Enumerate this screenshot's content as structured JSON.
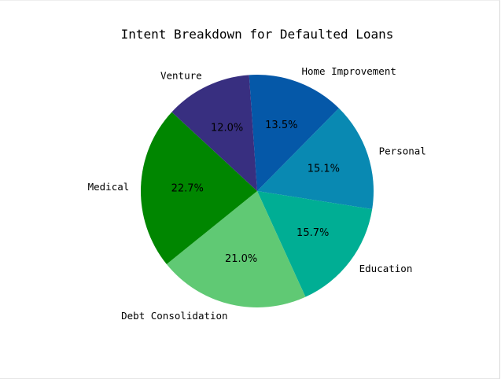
{
  "chart_data": {
    "type": "pie",
    "title": "Intent Breakdown for Defaulted Loans",
    "categories": [
      "Home Improvement",
      "Personal",
      "Education",
      "Debt Consolidation",
      "Medical",
      "Venture"
    ],
    "values": [
      13.5,
      15.1,
      15.7,
      21.0,
      22.7,
      12.0
    ],
    "value_labels": [
      "13.5%",
      "15.1%",
      "15.7%",
      "21.0%",
      "22.7%",
      "12.0%"
    ],
    "colors": [
      "#0558a8",
      "#0989b2",
      "#00ae94",
      "#60c974",
      "#008600",
      "#382f80"
    ],
    "start_angle_deg": 94,
    "direction": "clockwise"
  }
}
